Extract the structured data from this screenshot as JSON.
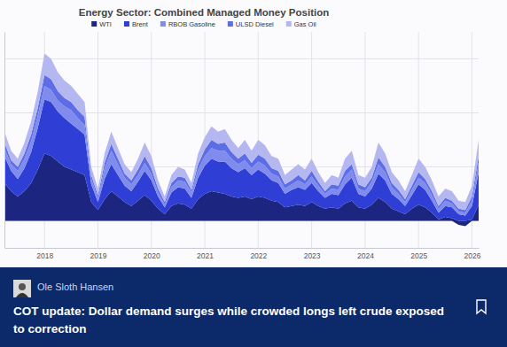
{
  "chart_data": {
    "type": "area",
    "title": "Energy Sector: Combined Managed Money Position",
    "stacked": true,
    "grid": true,
    "legend": "top",
    "tick_labels": "x",
    "x": [
      2017.25,
      2017.375,
      2017.5,
      2017.625,
      2017.75,
      2017.875,
      2018,
      2018.125,
      2018.25,
      2018.375,
      2018.5,
      2018.625,
      2018.75,
      2018.875,
      2019,
      2019.125,
      2019.25,
      2019.375,
      2019.5,
      2019.625,
      2019.75,
      2019.875,
      2020,
      2020.125,
      2020.25,
      2020.375,
      2020.5,
      2020.625,
      2020.75,
      2020.875,
      2021,
      2021.125,
      2021.25,
      2021.375,
      2021.5,
      2021.625,
      2021.75,
      2021.875,
      2022,
      2022.125,
      2022.25,
      2022.375,
      2022.5,
      2022.625,
      2022.75,
      2022.875,
      2023,
      2023.125,
      2023.25,
      2023.375,
      2023.5,
      2023.625,
      2023.75,
      2023.875,
      2024,
      2024.125,
      2024.25,
      2024.375,
      2024.5,
      2024.625,
      2024.75,
      2024.875,
      2025,
      2025.125,
      2025.25,
      2025.375,
      2025.5,
      2025.625,
      2025.75,
      2025.875,
      2026,
      2026.125
    ],
    "xlim": [
      2017.25,
      2026.125
    ],
    "xticks": [
      2018,
      2019,
      2020,
      2021,
      2022,
      2023,
      2024,
      2025,
      2026
    ],
    "ylim": [
      -100,
      700
    ],
    "yticks": [
      0,
      200,
      400,
      600
    ],
    "series": [
      {
        "name": "WTI",
        "color": "#1c2580",
        "values": [
          140,
          110,
          90,
          110,
          140,
          190,
          250,
          240,
          220,
          200,
          190,
          180,
          170,
          70,
          40,
          80,
          110,
          90,
          70,
          55,
          75,
          95,
          75,
          45,
          25,
          55,
          65,
          60,
          45,
          80,
          100,
          110,
          105,
          100,
          90,
          85,
          90,
          80,
          90,
          85,
          75,
          70,
          50,
          55,
          60,
          55,
          70,
          55,
          45,
          50,
          45,
          65,
          75,
          50,
          45,
          60,
          85,
          70,
          45,
          35,
          25,
          45,
          60,
          50,
          30,
          5,
          15,
          10,
          -15,
          -20,
          5,
          60
        ]
      },
      {
        "name": "Brent",
        "color": "#2f3fd6",
        "values": [
          100,
          75,
          65,
          85,
          115,
          155,
          200,
          200,
          185,
          180,
          170,
          160,
          150,
          65,
          30,
          75,
          100,
          80,
          60,
          55,
          70,
          90,
          75,
          45,
          25,
          50,
          60,
          60,
          40,
          80,
          105,
          120,
          115,
          120,
          105,
          95,
          105,
          90,
          100,
          90,
          75,
          70,
          50,
          60,
          65,
          60,
          70,
          55,
          40,
          50,
          50,
          70,
          85,
          50,
          45,
          60,
          90,
          80,
          55,
          45,
          30,
          50,
          75,
          65,
          45,
          25,
          40,
          40,
          25,
          20,
          50,
          120
        ]
      },
      {
        "name": "RBOB Gasoline",
        "color": "#7f8ced",
        "values": [
          30,
          25,
          30,
          35,
          40,
          45,
          50,
          45,
          40,
          45,
          50,
          40,
          35,
          20,
          15,
          40,
          50,
          40,
          30,
          25,
          25,
          30,
          25,
          15,
          10,
          20,
          25,
          25,
          20,
          30,
          35,
          40,
          40,
          40,
          35,
          30,
          30,
          25,
          30,
          30,
          25,
          25,
          20,
          20,
          25,
          20,
          25,
          20,
          15,
          20,
          20,
          30,
          30,
          20,
          20,
          25,
          35,
          30,
          25,
          20,
          15,
          20,
          25,
          25,
          20,
          15,
          20,
          15,
          10,
          10,
          20,
          35
        ]
      },
      {
        "name": "ULSD Diesel",
        "color": "#5c6de6",
        "values": [
          20,
          15,
          15,
          20,
          25,
          30,
          40,
          40,
          35,
          30,
          30,
          30,
          30,
          15,
          10,
          20,
          25,
          20,
          15,
          15,
          20,
          25,
          20,
          15,
          10,
          15,
          15,
          15,
          10,
          20,
          25,
          30,
          25,
          30,
          25,
          20,
          25,
          20,
          25,
          25,
          20,
          20,
          15,
          15,
          20,
          15,
          20,
          15,
          10,
          15,
          15,
          20,
          20,
          15,
          15,
          15,
          25,
          20,
          15,
          15,
          10,
          15,
          20,
          15,
          15,
          10,
          10,
          10,
          10,
          10,
          15,
          25
        ]
      },
      {
        "name": "Gas Oil",
        "color": "#b4b7f0",
        "values": [
          40,
          35,
          30,
          40,
          50,
          60,
          80,
          75,
          70,
          65,
          60,
          60,
          55,
          30,
          25,
          35,
          45,
          40,
          35,
          30,
          40,
          50,
          45,
          30,
          20,
          30,
          35,
          30,
          25,
          40,
          45,
          50,
          45,
          50,
          45,
          40,
          50,
          45,
          55,
          50,
          45,
          45,
          35,
          40,
          40,
          40,
          45,
          35,
          30,
          35,
          30,
          45,
          50,
          35,
          35,
          40,
          55,
          50,
          40,
          35,
          30,
          40,
          50,
          45,
          40,
          35,
          35,
          35,
          30,
          30,
          40,
          60
        ]
      }
    ]
  },
  "card": {
    "author": "Ole Sloth Hansen",
    "headline": "COT update: Dollar demand surges while crowded longs left crude exposed to correction"
  }
}
